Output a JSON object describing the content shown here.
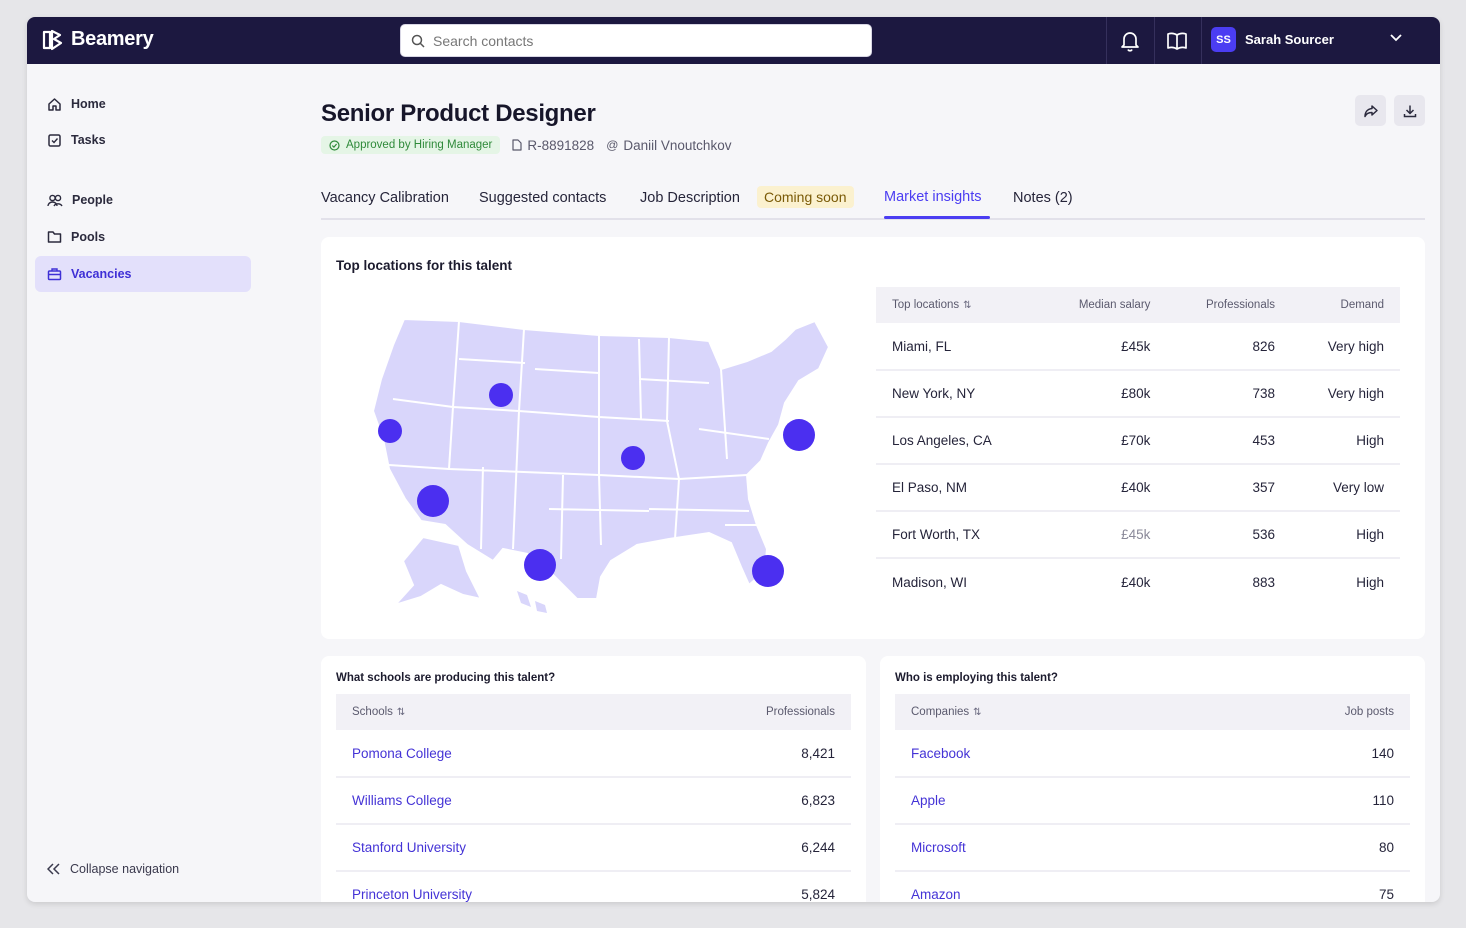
{
  "brand": {
    "name": "Beamery"
  },
  "search": {
    "placeholder": "Search contacts"
  },
  "user": {
    "initials": "SS",
    "name": "Sarah Sourcer"
  },
  "sidebar": {
    "items": [
      {
        "label": "Home"
      },
      {
        "label": "Tasks"
      },
      {
        "label": "People"
      },
      {
        "label": "Pools"
      },
      {
        "label": "Vacancies"
      }
    ],
    "collapse_label": "Collapse navigation"
  },
  "vacancy": {
    "title": "Senior Product Designer",
    "status": "Approved by Hiring Manager",
    "id": "R-8891828",
    "owner": "Daniil Vnoutchkov"
  },
  "tabs": [
    {
      "label": "Vacancy Calibration"
    },
    {
      "label": "Suggested contacts"
    },
    {
      "label": "Job Description"
    },
    {
      "label": "Market insights"
    },
    {
      "label": "Notes (2)"
    }
  ],
  "coming_soon": "Coming soon",
  "locations": {
    "title": "Top locations for this talent",
    "headers": [
      "Top locations",
      "Median salary",
      "Professionals",
      "Demand"
    ],
    "rows": [
      {
        "location": "Miami, FL",
        "salary": "£45k",
        "professionals": "826",
        "demand": "Very high"
      },
      {
        "location": "New York, NY",
        "salary": "£80k",
        "professionals": "738",
        "demand": "Very high"
      },
      {
        "location": "Los Angeles, CA",
        "salary": "£70k",
        "professionals": "453",
        "demand": "High"
      },
      {
        "location": "El Paso, NM",
        "salary": "£40k",
        "professionals": "357",
        "demand": "Very low"
      },
      {
        "location": "Fort Worth, TX",
        "salary": "£45k",
        "professionals": "536",
        "demand": "High"
      },
      {
        "location": "Madison, WI",
        "salary": "£40k",
        "professionals": "883",
        "demand": "High"
      }
    ]
  },
  "schools": {
    "title": "What schools are producing this talent?",
    "headers": [
      "Schools",
      "Professionals"
    ],
    "rows": [
      {
        "name": "Pomona College",
        "value": "8,421"
      },
      {
        "name": "Williams College",
        "value": "6,823"
      },
      {
        "name": "Stanford University",
        "value": "6,244"
      },
      {
        "name": "Princeton University",
        "value": "5,824"
      }
    ]
  },
  "companies": {
    "title": "Who is employing this talent?",
    "headers": [
      "Companies",
      "Job posts"
    ],
    "rows": [
      {
        "name": "Facebook",
        "value": "140"
      },
      {
        "name": "Apple",
        "value": "110"
      },
      {
        "name": "Microsoft",
        "value": "80"
      },
      {
        "name": "Amazon",
        "value": "75"
      }
    ]
  },
  "colors": {
    "accent": "#4b3df2",
    "topbar": "#1c1840",
    "map_fill": "#d9d6fb",
    "badge_bg": "#e5f5e6",
    "badge_text": "#2f8a3a"
  },
  "icons": [
    "beamery-logo-icon",
    "search-icon",
    "bell-icon",
    "book-icon",
    "chevron-down-icon",
    "home-icon",
    "tasks-icon",
    "people-icon",
    "folder-icon",
    "briefcase-icon",
    "collapse-icon",
    "share-icon",
    "download-icon",
    "check-circle-icon",
    "document-icon",
    "at-icon",
    "sort-icon"
  ]
}
